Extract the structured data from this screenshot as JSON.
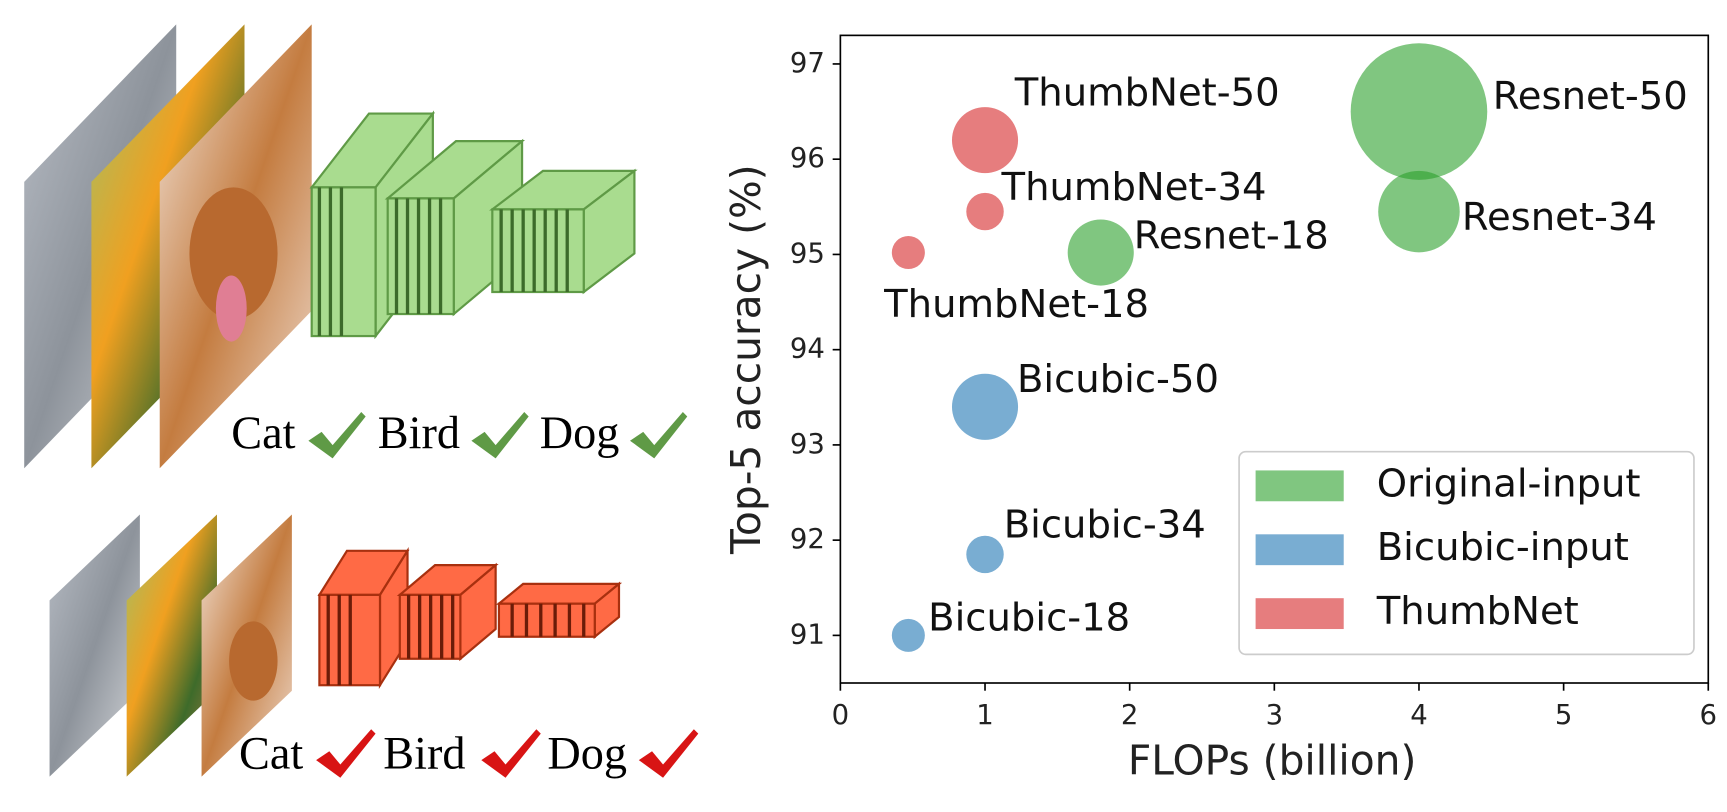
{
  "illustration": {
    "top_labels": [
      "Cat",
      "Bird",
      "Dog"
    ],
    "bottom_labels": [
      "Cat",
      "Bird",
      "Dog"
    ]
  },
  "chart_data": {
    "type": "bubble",
    "xlabel": "FLOPs (billion)",
    "ylabel": "Top-5 accuracy (%)",
    "xlim": [
      0,
      6
    ],
    "ylim": [
      90.5,
      97.3
    ],
    "xticks": [
      0,
      1,
      2,
      3,
      4,
      5,
      6
    ],
    "yticks": [
      91,
      92,
      93,
      94,
      95,
      96,
      97
    ],
    "legend": "lower right",
    "series": [
      {
        "name": "Original-input",
        "color": "#2ca02c",
        "labels": [
          "Resnet-18",
          "Resnet-34",
          "Resnet-50"
        ],
        "x": [
          1.8,
          4.0,
          4.0
        ],
        "values": [
          95.02,
          95.45,
          96.5
        ],
        "sizes": [
          30,
          37,
          62
        ]
      },
      {
        "name": "Bicubic-input",
        "color": "#1f77b4",
        "labels": [
          "Bicubic-18",
          "Bicubic-34",
          "Bicubic-50"
        ],
        "x": [
          0.47,
          1.0,
          1.0
        ],
        "values": [
          91.0,
          91.85,
          93.4
        ],
        "sizes": [
          15,
          17,
          30
        ]
      },
      {
        "name": "ThumbNet",
        "color": "#d62728",
        "labels": [
          "ThumbNet-18",
          "ThumbNet-34",
          "ThumbNet-50"
        ],
        "x": [
          0.47,
          1.0,
          1.0
        ],
        "values": [
          95.02,
          95.45,
          96.2
        ],
        "sizes": [
          15,
          17,
          30
        ]
      }
    ]
  }
}
